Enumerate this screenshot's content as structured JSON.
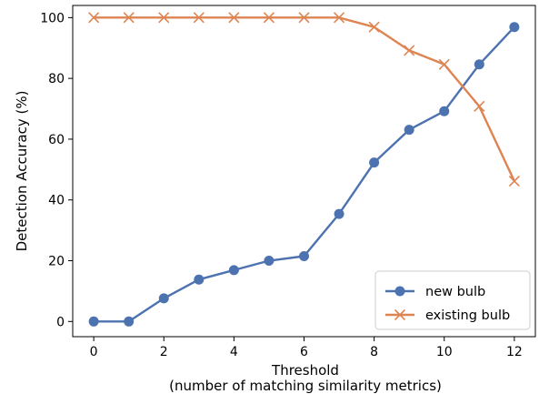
{
  "chart_data": {
    "type": "line",
    "xlabel": "Threshold",
    "xlabel_line2": "(number of matching similarity metrics)",
    "ylabel": "Detection Accuracy (%)",
    "x": [
      0,
      1,
      2,
      3,
      4,
      5,
      6,
      7,
      8,
      9,
      10,
      11,
      12
    ],
    "xlim": [
      -0.6,
      12.6
    ],
    "ylim": [
      -5,
      104
    ],
    "xticks": [
      0,
      2,
      4,
      6,
      8,
      10,
      12
    ],
    "yticks": [
      0,
      20,
      40,
      60,
      80,
      100
    ],
    "grid": false,
    "legend_position": "lower-right",
    "series": [
      {
        "name": "new bulb",
        "color": "#4c72b0",
        "marker": "circle",
        "values": [
          0,
          0,
          7.6,
          13.8,
          16.9,
          20.0,
          21.5,
          35.4,
          52.3,
          63.1,
          69.2,
          84.6,
          96.9
        ]
      },
      {
        "name": "existing bulb",
        "color": "#dd8452",
        "marker": "x",
        "values": [
          100,
          100,
          100,
          100,
          100,
          100,
          100,
          100,
          96.9,
          89.2,
          84.6,
          70.8,
          46.2
        ]
      }
    ]
  }
}
